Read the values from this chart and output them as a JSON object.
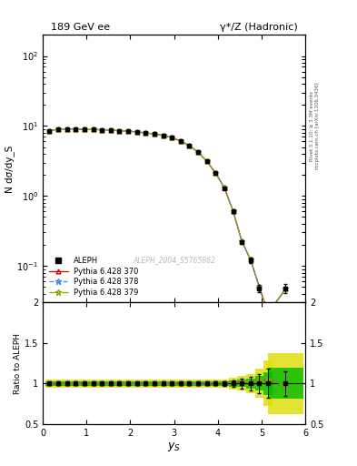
{
  "title_left": "189 GeV ee",
  "title_right": "γ*/Z (Hadronic)",
  "xlabel": "y_S",
  "ylabel_main": "N dσ/dy_S",
  "ylabel_ratio": "Ratio to ALEPH",
  "right_label_top": "Rivet 3.1.10; ≥ 3.3M events",
  "right_label_bot": "mcplots.cern.ch [arXiv:1306.3436]",
  "watermark": "ALEPH_2004_S5765862",
  "x_data": [
    0.15,
    0.35,
    0.55,
    0.75,
    0.95,
    1.15,
    1.35,
    1.55,
    1.75,
    1.95,
    2.15,
    2.35,
    2.55,
    2.75,
    2.95,
    3.15,
    3.35,
    3.55,
    3.75,
    3.95,
    4.15,
    4.35,
    4.55,
    4.75,
    4.95,
    5.15,
    5.55
  ],
  "y_aleph": [
    8.5,
    8.9,
    9.1,
    9.0,
    8.9,
    8.85,
    8.8,
    8.7,
    8.55,
    8.4,
    8.2,
    7.95,
    7.65,
    7.3,
    6.8,
    6.1,
    5.2,
    4.2,
    3.1,
    2.1,
    1.3,
    0.6,
    0.22,
    0.12,
    0.048,
    0.02,
    0.048
  ],
  "y_p370": [
    8.55,
    8.95,
    9.1,
    9.02,
    8.92,
    8.88,
    8.82,
    8.72,
    8.57,
    8.42,
    8.22,
    7.97,
    7.67,
    7.32,
    6.82,
    6.12,
    5.22,
    4.22,
    3.12,
    2.12,
    1.31,
    0.61,
    0.225,
    0.122,
    0.05,
    0.021,
    0.047
  ],
  "y_p378": [
    8.55,
    8.95,
    9.1,
    9.02,
    8.92,
    8.88,
    8.82,
    8.72,
    8.57,
    8.42,
    8.22,
    7.97,
    7.67,
    7.32,
    6.82,
    6.12,
    5.22,
    4.22,
    3.12,
    2.12,
    1.31,
    0.61,
    0.225,
    0.122,
    0.05,
    0.021,
    0.047
  ],
  "y_p379": [
    8.55,
    8.95,
    9.1,
    9.02,
    8.92,
    8.88,
    8.82,
    8.72,
    8.57,
    8.42,
    8.22,
    7.97,
    7.67,
    7.32,
    6.82,
    6.12,
    5.22,
    4.22,
    3.12,
    2.12,
    1.31,
    0.61,
    0.225,
    0.122,
    0.05,
    0.021,
    0.047
  ],
  "y_aleph_err_rel": [
    0.018,
    0.017,
    0.016,
    0.016,
    0.016,
    0.016,
    0.016,
    0.016,
    0.015,
    0.015,
    0.015,
    0.015,
    0.015,
    0.015,
    0.015,
    0.015,
    0.015,
    0.016,
    0.018,
    0.022,
    0.03,
    0.04,
    0.06,
    0.08,
    0.12,
    0.18,
    0.15
  ],
  "xlim": [
    0,
    6
  ],
  "ylim_main": [
    0.03,
    200
  ],
  "ylim_ratio": [
    0.5,
    2.0
  ],
  "ratio_yticks": [
    0.5,
    1.0,
    1.5,
    2.0
  ],
  "color_aleph": "#000000",
  "color_p370": "#dd0000",
  "color_p378": "#4488ff",
  "color_p379": "#88aa00",
  "bg_color": "#ffffff",
  "ratio_band_yellow": "#dddd00",
  "ratio_band_green": "#00bb00",
  "band_outer": [
    0.05,
    0.05,
    0.05,
    0.05,
    0.05,
    0.05,
    0.05,
    0.05,
    0.05,
    0.05,
    0.05,
    0.05,
    0.05,
    0.05,
    0.05,
    0.05,
    0.05,
    0.05,
    0.05,
    0.05,
    0.05,
    0.07,
    0.09,
    0.12,
    0.18,
    0.28,
    0.38
  ],
  "band_inner": [
    0.025,
    0.025,
    0.025,
    0.025,
    0.025,
    0.025,
    0.025,
    0.025,
    0.025,
    0.025,
    0.025,
    0.025,
    0.025,
    0.025,
    0.025,
    0.025,
    0.025,
    0.025,
    0.025,
    0.025,
    0.025,
    0.035,
    0.045,
    0.06,
    0.09,
    0.14,
    0.19
  ],
  "bin_widths": [
    0.2,
    0.2,
    0.2,
    0.2,
    0.2,
    0.2,
    0.2,
    0.2,
    0.2,
    0.2,
    0.2,
    0.2,
    0.2,
    0.2,
    0.2,
    0.2,
    0.2,
    0.2,
    0.2,
    0.2,
    0.2,
    0.2,
    0.2,
    0.2,
    0.2,
    0.2,
    0.8
  ]
}
